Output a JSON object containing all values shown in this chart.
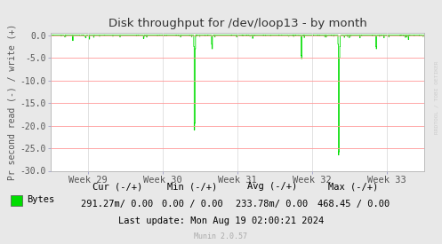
{
  "title": "Disk throughput for /dev/loop13 - by month",
  "ylabel": "Pr second read (-) / write (+)",
  "ylim": [
    -30.0,
    0.5
  ],
  "yticks": [
    0.0,
    -5.0,
    -10.0,
    -15.0,
    -20.0,
    -25.0,
    -30.0
  ],
  "ytick_labels": [
    "0.0",
    "-5.0",
    "-10.0",
    "-15.0",
    "-20.0",
    "-25.0",
    "-30.0"
  ],
  "x_labels": [
    "Week 29",
    "Week 30",
    "Week 31",
    "Week 32",
    "Week 33"
  ],
  "bg_color": "#e8e8e8",
  "plot_bg_color": "#ffffff",
  "grid_color_h": "#ff9999",
  "grid_color_v": "#dddddd",
  "line_color": "#00dd00",
  "border_color": "#aaaaaa",
  "title_color": "#333333",
  "label_color": "#555555",
  "tick_color": "#555555",
  "legend_text": "Bytes",
  "cur_neg": "291.27m/",
  "cur_pos": "0.00",
  "min_neg": "0.00 /",
  "min_pos": "0.00",
  "avg_neg": "233.78m/",
  "avg_pos": "0.00",
  "max_neg": "468.45 /",
  "max_pos": "0.00",
  "last_update": "Last update: Mon Aug 19 02:00:21 2024",
  "munin_version": "Munin 2.0.57",
  "rrdtool_label": "RRDTOOL / TOBI OETIKER",
  "figsize": [
    4.97,
    2.75
  ],
  "dpi": 100
}
